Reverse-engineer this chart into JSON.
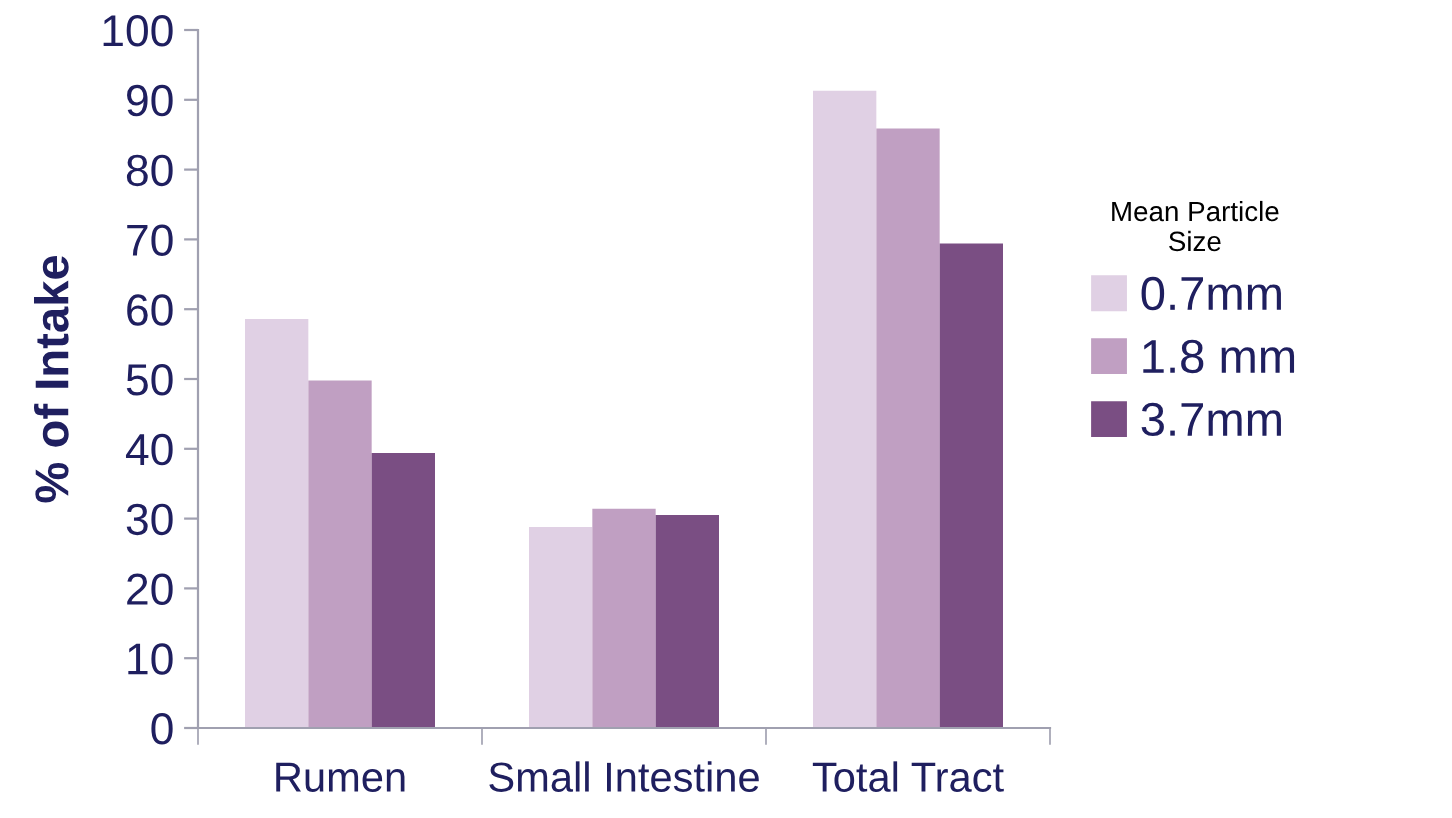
{
  "chart_data": {
    "type": "bar",
    "ylabel": "% of Intake",
    "legend_title": "Mean Particle\nSize",
    "categories": [
      "Rumen",
      "Small Intestine",
      "Total Tract"
    ],
    "series": [
      {
        "name": "0.7mm",
        "color": "#e0d0e4",
        "values": [
          58.6,
          28.8,
          91.3
        ]
      },
      {
        "name": "1.8 mm",
        "color": "#c09fc2",
        "values": [
          49.8,
          31.4,
          85.9
        ]
      },
      {
        "name": "3.7mm",
        "color": "#7a4e83",
        "values": [
          39.4,
          30.5,
          69.4
        ]
      }
    ],
    "ylim": [
      0,
      100
    ],
    "yticks": [
      0,
      10,
      20,
      30,
      40,
      50,
      60,
      70,
      80,
      90,
      100
    ],
    "grid": false,
    "legend": "right"
  }
}
